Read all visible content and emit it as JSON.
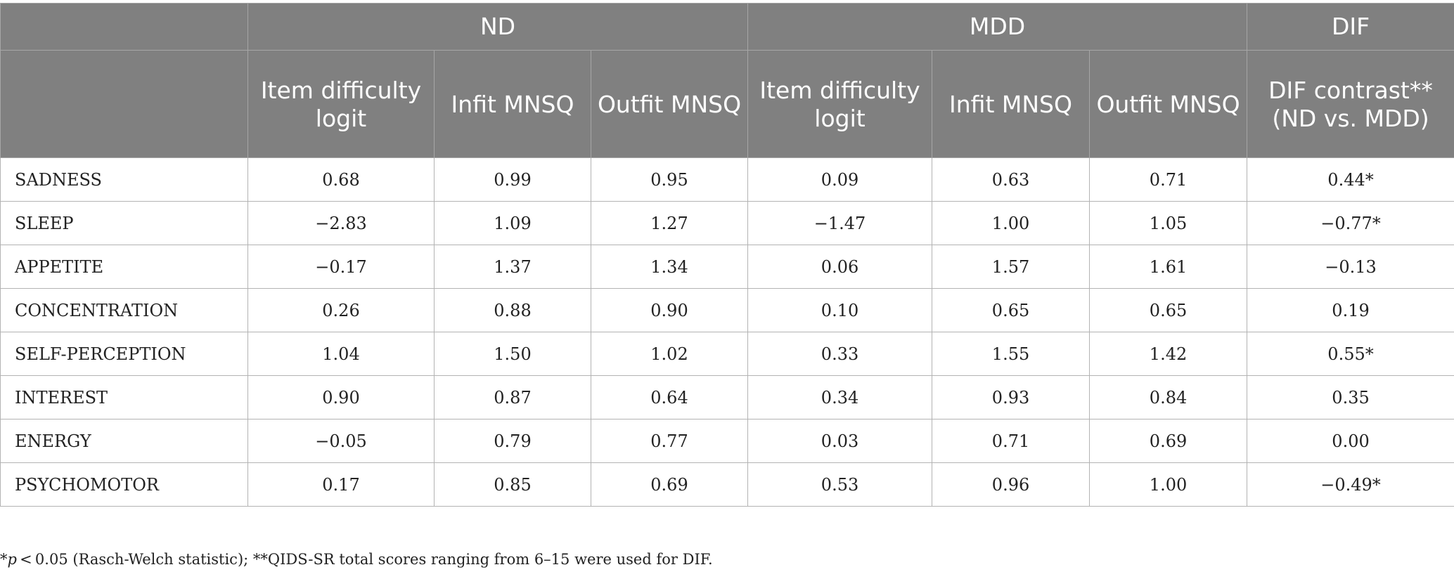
{
  "table": {
    "group_headers": [
      "",
      "ND",
      "MDD",
      "DIF"
    ],
    "sub_headers": [
      "",
      "Item difficulty logit",
      "Infit MNSQ",
      "Outfit MNSQ",
      "Item difficulty logit",
      "Infit MNSQ",
      "Outfit MNSQ",
      "DIF contrast** (ND vs. MDD)"
    ],
    "rows": [
      [
        "SADNESS",
        "0.68",
        "0.99",
        "0.95",
        "0.09",
        "0.63",
        "0.71",
        "0.44*"
      ],
      [
        "SLEEP",
        "−2.83",
        "1.09",
        "1.27",
        "−1.47",
        "1.00",
        "1.05",
        "−0.77*"
      ],
      [
        "APPETITE",
        "−0.17",
        "1.37",
        "1.34",
        "0.06",
        "1.57",
        "1.61",
        "−0.13"
      ],
      [
        "CONCENTRATION",
        "0.26",
        "0.88",
        "0.90",
        "0.10",
        "0.65",
        "0.65",
        "0.19"
      ],
      [
        "SELF-PERCEPTION",
        "1.04",
        "1.50",
        "1.02",
        "0.33",
        "1.55",
        "1.42",
        "0.55*"
      ],
      [
        "INTEREST",
        "0.90",
        "0.87",
        "0.64",
        "0.34",
        "0.93",
        "0.84",
        "0.35"
      ],
      [
        "ENERGY",
        "−0.05",
        "0.79",
        "0.77",
        "0.03",
        "0.71",
        "0.69",
        "0.00"
      ],
      [
        "PSYCHOMOTOR",
        "0.17",
        "0.85",
        "0.69",
        "0.53",
        "0.96",
        "1.00",
        "−0.49*"
      ]
    ]
  },
  "footnote": {
    "star": "*",
    "p_symbol": "p",
    "text": " < 0.05 (Rasch-Welch statistic); **QIDS-SR total scores ranging from 6–15 were used for DIF."
  },
  "colors": {
    "header_bg": "#808080",
    "header_text": "#ffffff",
    "border": "#b3b3b3"
  }
}
